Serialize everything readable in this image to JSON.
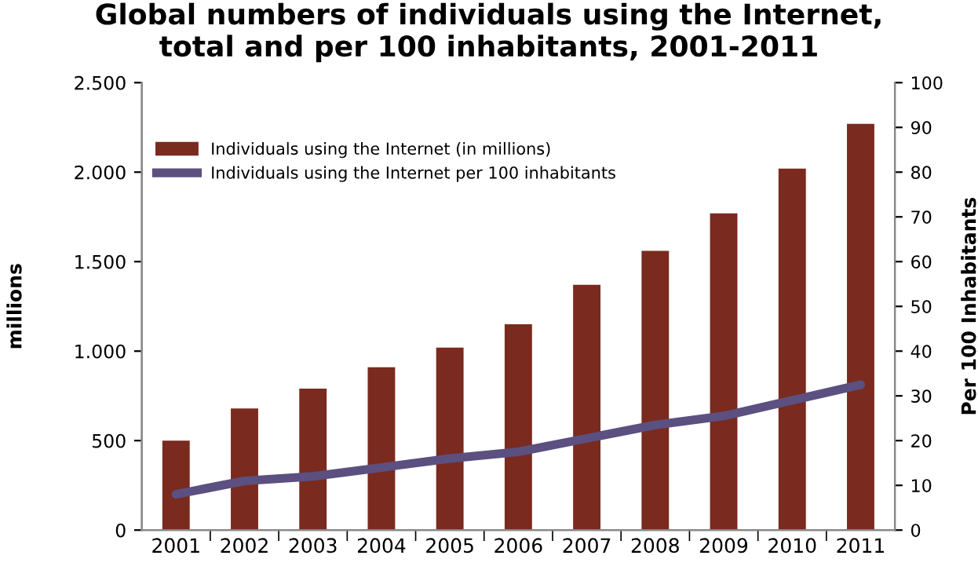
{
  "chart_data": {
    "type": "bar",
    "title": "Global numbers of individuals using the Internet,\ntotal and per 100 inhabitants, 2001-2011",
    "ylabel": "millions",
    "y2label": "Per 100 Inhabitants",
    "categories": [
      "2001",
      "2002",
      "2003",
      "2004",
      "2005",
      "2006",
      "2007",
      "2008",
      "2009",
      "2010",
      "2011"
    ],
    "series": [
      {
        "name": "Individuals using the Internet (in millions)",
        "color": "#7a2a1e",
        "values": [
          500,
          680,
          790,
          910,
          1020,
          1150,
          1370,
          1560,
          1770,
          2020,
          2270
        ]
      },
      {
        "name": "Individuals using the Internet per 100 inhabitants",
        "type": "line",
        "axis": "y2",
        "color": "#5b5080",
        "values": [
          8,
          11,
          12,
          14,
          16,
          17.5,
          20.5,
          23.5,
          25.5,
          29,
          32.5
        ]
      }
    ],
    "ylim": [
      0,
      2500
    ],
    "yticks": [
      {
        "value": 0,
        "label": "0"
      },
      {
        "value": 500,
        "label": "500"
      },
      {
        "value": 1000,
        "label": "1.000"
      },
      {
        "value": 1500,
        "label": "1.500"
      },
      {
        "value": 2000,
        "label": "2.000"
      },
      {
        "value": 2500,
        "label": "2.500"
      }
    ],
    "y2lim": [
      0,
      100
    ],
    "y2ticks": [
      0,
      10,
      20,
      30,
      40,
      50,
      60,
      70,
      80,
      90,
      100
    ],
    "legend": "top left",
    "grid": false
  }
}
